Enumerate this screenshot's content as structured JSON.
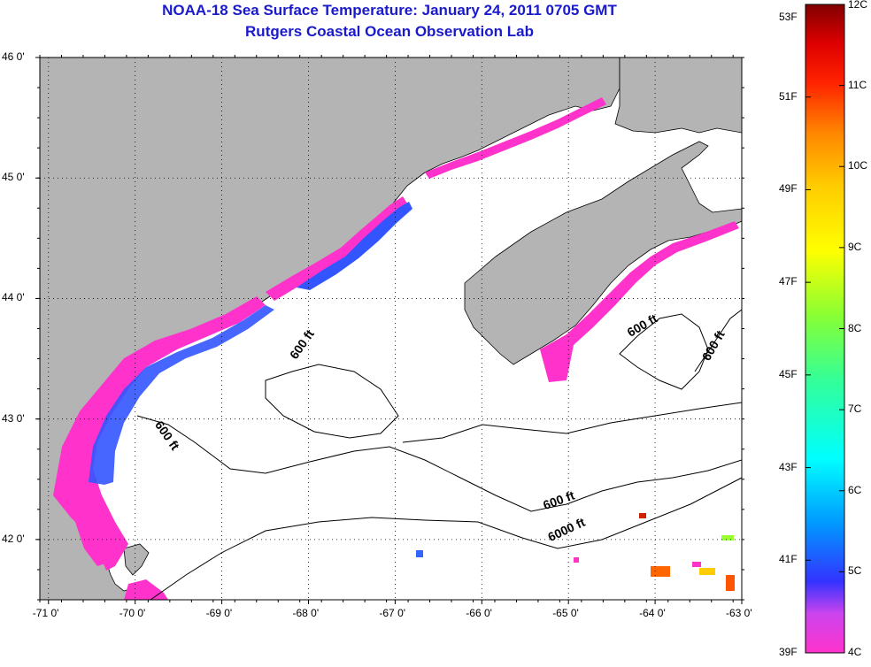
{
  "title": "NOAA-18 Sea Surface Temperature:  January 24, 2011 0705 GMT",
  "subtitle": "Rutgers Coastal Ocean Observation Lab",
  "colors": {
    "land": "#b4b4b4",
    "ocean": "#ffffff",
    "title": "#1a1acc"
  },
  "chart_data": {
    "type": "heatmap",
    "title": "NOAA-18 Sea Surface Temperature:  January 24, 2011 0705 GMT",
    "subtitle": "Rutgers Coastal Ocean Observation Lab",
    "xlim": [
      -71.1,
      -63.0
    ],
    "ylim": [
      41.5,
      46.0
    ],
    "x_ticks": [
      -71,
      -70,
      -69,
      -68,
      -67,
      -66,
      -65,
      -64,
      -63
    ],
    "x_tick_labels": [
      "-71 0'",
      "-70 0'",
      "-69 0'",
      "-68 0'",
      "-67 0'",
      "-66 0'",
      "-65 0'",
      "-64 0'",
      "-63 0'"
    ],
    "y_ticks": [
      42,
      43,
      44,
      45,
      46
    ],
    "y_tick_labels": [
      "42 0'",
      "43 0'",
      "44 0'",
      "45 0'",
      "46 0'"
    ],
    "grid": true,
    "colorbar": {
      "celsius_labels": [
        "12C",
        "11C",
        "10C",
        "9C",
        "8C",
        "7C",
        "6C",
        "5C",
        "4C"
      ],
      "celsius_values": [
        12,
        11,
        10,
        9,
        8,
        7,
        6,
        5,
        4
      ],
      "fahrenheit_labels": [
        "53F",
        "51F",
        "49F",
        "47F",
        "45F",
        "43F",
        "41F",
        "39F"
      ],
      "fahrenheit_values": [
        53,
        51,
        49,
        47,
        45,
        43,
        41,
        39
      ],
      "range_c": [
        4,
        12
      ],
      "range_f": [
        39,
        53
      ]
    },
    "contours": [
      {
        "label": "600 ft",
        "depth_ft": 600
      },
      {
        "label": "600 ft",
        "depth_ft": 600
      },
      {
        "label": "600 ft",
        "depth_ft": 600
      },
      {
        "label": "600 ft",
        "depth_ft": 600
      },
      {
        "label": "600 ft",
        "depth_ft": 600
      },
      {
        "label": "6000 ft",
        "depth_ft": 6000
      }
    ]
  }
}
